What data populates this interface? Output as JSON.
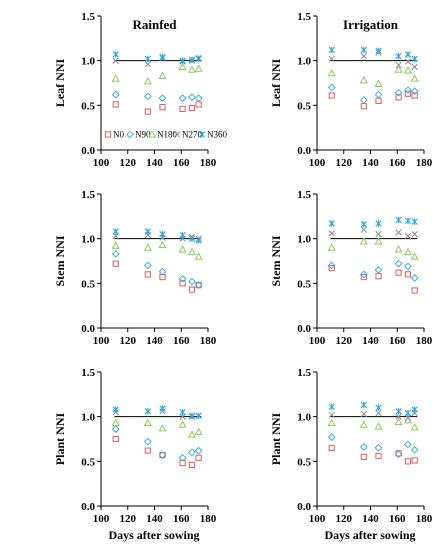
{
  "figure": {
    "xlabel": "Days after sowing",
    "legend_labels": [
      "N0",
      "N90",
      "N180",
      "N270",
      "N360"
    ],
    "legend_panel": 0
  },
  "colors": {
    "N0": "#e15c5c",
    "N90": "#3cb0e0",
    "N180": "#8ccc5c",
    "N270": "#8c8c8c",
    "N360": "#28a8e0",
    "refline": "#000000",
    "axis": "#000000"
  },
  "chart_data": [
    {
      "type": "scatter",
      "title": "Rainfed",
      "ylabel": "Leaf NNI",
      "xlim": [
        100,
        180
      ],
      "ylim": [
        0,
        1.5
      ],
      "xticks": [
        100,
        120,
        140,
        160,
        180
      ],
      "yticks": [
        0.0,
        0.5,
        1.0,
        1.5
      ],
      "reference_line": {
        "y": 1.0,
        "x": [
          110,
          175
        ]
      },
      "x": [
        111,
        135,
        146,
        161,
        168,
        173
      ],
      "series": [
        {
          "name": "N0",
          "marker": "square",
          "values": [
            0.51,
            0.43,
            0.48,
            0.46,
            0.47,
            0.51
          ]
        },
        {
          "name": "N90",
          "marker": "diamond",
          "values": [
            0.62,
            0.6,
            0.58,
            0.58,
            0.59,
            0.58
          ]
        },
        {
          "name": "N180",
          "marker": "triangle",
          "values": [
            0.8,
            0.77,
            0.83,
            0.93,
            0.9,
            0.91
          ]
        },
        {
          "name": "N270",
          "marker": "x",
          "values": [
            1.0,
            0.96,
            1.03,
            0.99,
            1.0,
            1.03
          ]
        },
        {
          "name": "N360",
          "marker": "star",
          "values": [
            1.07,
            1.02,
            1.04,
            1.0,
            1.01,
            1.02
          ]
        }
      ]
    },
    {
      "type": "scatter",
      "title": "Irrigation",
      "ylabel": "Leaf NNI",
      "xlim": [
        100,
        180
      ],
      "ylim": [
        0,
        1.5
      ],
      "xticks": [
        100,
        120,
        140,
        160,
        180
      ],
      "yticks": [
        0.0,
        0.5,
        1.0,
        1.5
      ],
      "reference_line": {
        "y": 1.0,
        "x": [
          110,
          175
        ]
      },
      "x": [
        111,
        135,
        146,
        161,
        168,
        173
      ],
      "series": [
        {
          "name": "N0",
          "marker": "square",
          "values": [
            0.61,
            0.49,
            0.55,
            0.59,
            0.63,
            0.61
          ]
        },
        {
          "name": "N90",
          "marker": "diamond",
          "values": [
            0.7,
            0.56,
            0.62,
            0.64,
            0.67,
            0.66
          ]
        },
        {
          "name": "N180",
          "marker": "triangle",
          "values": [
            0.86,
            0.78,
            0.74,
            0.9,
            0.89,
            0.8
          ]
        },
        {
          "name": "N270",
          "marker": "x",
          "values": [
            1.02,
            1.05,
            1.09,
            0.95,
            0.99,
            0.93
          ]
        },
        {
          "name": "N360",
          "marker": "star",
          "values": [
            1.12,
            1.12,
            1.11,
            1.05,
            1.07,
            1.02
          ]
        }
      ]
    },
    {
      "type": "scatter",
      "title": "",
      "ylabel": "Stem NNI",
      "xlim": [
        100,
        180
      ],
      "ylim": [
        0,
        1.5
      ],
      "xticks": [
        100,
        120,
        140,
        160,
        180
      ],
      "yticks": [
        0.0,
        0.5,
        1.0,
        1.5
      ],
      "reference_line": {
        "y": 1.0,
        "x": [
          110,
          175
        ]
      },
      "x": [
        111,
        135,
        146,
        161,
        168,
        173
      ],
      "series": [
        {
          "name": "N0",
          "marker": "square",
          "values": [
            0.72,
            0.6,
            0.57,
            0.5,
            0.43,
            0.48
          ]
        },
        {
          "name": "N90",
          "marker": "diamond",
          "values": [
            0.83,
            0.7,
            0.63,
            0.55,
            0.52,
            0.48
          ]
        },
        {
          "name": "N180",
          "marker": "triangle",
          "values": [
            0.92,
            0.9,
            0.93,
            0.88,
            0.85,
            0.8
          ]
        },
        {
          "name": "N270",
          "marker": "x",
          "values": [
            1.03,
            1.04,
            1.01,
            1.0,
            1.02,
            1.0
          ]
        },
        {
          "name": "N360",
          "marker": "star",
          "values": [
            1.08,
            1.08,
            1.05,
            1.04,
            1.0,
            0.98
          ]
        }
      ]
    },
    {
      "type": "scatter",
      "title": "",
      "ylabel": "Stem NNI",
      "xlim": [
        100,
        180
      ],
      "ylim": [
        0,
        1.5
      ],
      "xticks": [
        100,
        120,
        140,
        160,
        180
      ],
      "yticks": [
        0.0,
        0.5,
        1.0,
        1.5
      ],
      "reference_line": {
        "y": 1.0,
        "x": [
          110,
          175
        ]
      },
      "x": [
        111,
        135,
        146,
        161,
        168,
        173
      ],
      "series": [
        {
          "name": "N0",
          "marker": "square",
          "values": [
            0.67,
            0.57,
            0.58,
            0.62,
            0.6,
            0.42
          ]
        },
        {
          "name": "N90",
          "marker": "diamond",
          "values": [
            0.7,
            0.6,
            0.65,
            0.72,
            0.69,
            0.56
          ]
        },
        {
          "name": "N180",
          "marker": "triangle",
          "values": [
            0.9,
            0.97,
            0.97,
            0.88,
            0.85,
            0.8
          ]
        },
        {
          "name": "N270",
          "marker": "x",
          "values": [
            1.06,
            1.1,
            1.05,
            1.07,
            1.03,
            1.05
          ]
        },
        {
          "name": "N360",
          "marker": "star",
          "values": [
            1.17,
            1.16,
            1.17,
            1.21,
            1.2,
            1.19
          ]
        }
      ]
    },
    {
      "type": "scatter",
      "title": "",
      "ylabel": "Plant NNI",
      "xlim": [
        100,
        180
      ],
      "ylim": [
        0,
        1.5
      ],
      "xticks": [
        100,
        120,
        140,
        160,
        180
      ],
      "yticks": [
        0.0,
        0.5,
        1.0,
        1.5
      ],
      "reference_line": {
        "y": 1.0,
        "x": [
          110,
          175
        ]
      },
      "x": [
        111,
        135,
        146,
        161,
        168,
        173
      ],
      "series": [
        {
          "name": "N0",
          "marker": "square",
          "values": [
            0.75,
            0.62,
            0.57,
            0.48,
            0.46,
            0.54
          ]
        },
        {
          "name": "N90",
          "marker": "diamond",
          "values": [
            0.86,
            0.72,
            0.57,
            0.54,
            0.6,
            0.62
          ]
        },
        {
          "name": "N180",
          "marker": "triangle",
          "values": [
            0.93,
            0.93,
            0.87,
            0.91,
            0.8,
            0.83
          ]
        },
        {
          "name": "N270",
          "marker": "x",
          "values": [
            1.05,
            1.06,
            1.06,
            1.0,
            1.0,
            1.01
          ]
        },
        {
          "name": "N360",
          "marker": "star",
          "values": [
            1.08,
            1.06,
            1.09,
            1.05,
            1.01,
            1.01
          ]
        }
      ]
    },
    {
      "type": "scatter",
      "title": "",
      "ylabel": "Plant NNI",
      "xlim": [
        100,
        180
      ],
      "ylim": [
        0,
        1.5
      ],
      "xticks": [
        100,
        120,
        140,
        160,
        180
      ],
      "yticks": [
        0.0,
        0.5,
        1.0,
        1.5
      ],
      "reference_line": {
        "y": 1.0,
        "x": [
          110,
          175
        ]
      },
      "x": [
        111,
        135,
        146,
        161,
        168,
        173
      ],
      "series": [
        {
          "name": "N0",
          "marker": "square",
          "values": [
            0.65,
            0.55,
            0.56,
            0.59,
            0.5,
            0.51
          ]
        },
        {
          "name": "N90",
          "marker": "diamond",
          "values": [
            0.77,
            0.66,
            0.65,
            0.58,
            0.69,
            0.63
          ]
        },
        {
          "name": "N180",
          "marker": "triangle",
          "values": [
            0.93,
            0.91,
            0.89,
            0.94,
            0.96,
            0.88
          ]
        },
        {
          "name": "N270",
          "marker": "x",
          "values": [
            1.02,
            1.03,
            1.04,
            1.0,
            0.99,
            1.04
          ]
        },
        {
          "name": "N360",
          "marker": "star",
          "values": [
            1.11,
            1.13,
            1.1,
            1.06,
            1.04,
            1.08
          ]
        }
      ]
    }
  ]
}
